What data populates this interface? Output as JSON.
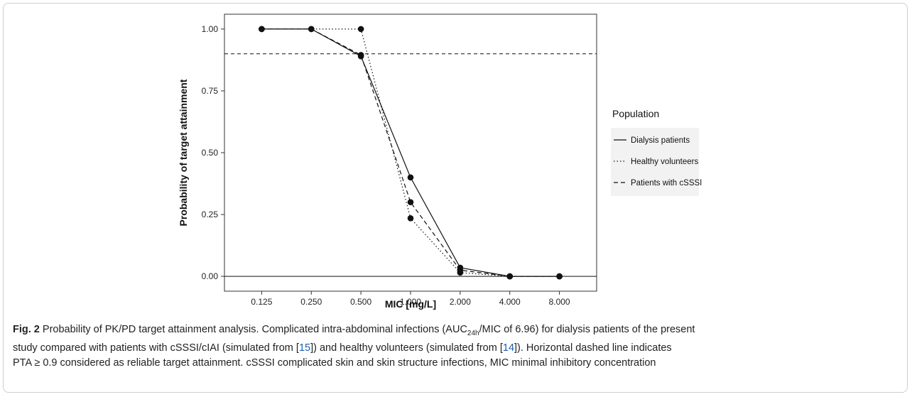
{
  "chart_data": {
    "type": "line",
    "xlabel": "MIC [mg/L]",
    "ylabel": "Probability of target attainment",
    "categories": [
      "0.125",
      "0.250",
      "0.500",
      "1.000",
      "2.000",
      "4.000",
      "8.000"
    ],
    "x": [
      0.125,
      0.25,
      0.5,
      1.0,
      2.0,
      4.0,
      8.0
    ],
    "x_scale": "log2",
    "yticks": [
      "0.00",
      "0.25",
      "0.50",
      "0.75",
      "1.00"
    ],
    "ylim": [
      -0.06,
      1.06
    ],
    "threshold": 0.9,
    "grid": false,
    "legend": {
      "title": "Population",
      "placement": "right"
    },
    "series": [
      {
        "name": "Dialysis patients",
        "linestyle": "solid",
        "values": [
          1.0,
          1.0,
          0.89,
          0.4,
          0.035,
          0.0,
          0.0
        ]
      },
      {
        "name": "Healthy volunteers",
        "linestyle": "dotted",
        "values": [
          1.0,
          1.0,
          1.0,
          0.235,
          0.015,
          0.0,
          0.0
        ]
      },
      {
        "name": "Patients with cSSSI",
        "linestyle": "dashed",
        "values": [
          1.0,
          1.0,
          0.895,
          0.3,
          0.025,
          0.0,
          0.0
        ]
      }
    ]
  },
  "caption": {
    "label": "Fig. 2",
    "title": "Probability of PK/PD target attainment analysis.",
    "seg1": "Complicated intra-abdominal infections (AUC",
    "sub": "24h",
    "seg2": "/MIC of 6.96) for dialysis patients of the present",
    "seg3": "study compared with patients with cSSSI/cIAI (simulated from [",
    "ref1": "15",
    "seg4": "]) and healthy volunteers (simulated from [",
    "ref2": "14",
    "seg5": "]). Horizontal dashed line indicates",
    "seg6": "PTA ≥ 0.9 considered as reliable target attainment. cSSSI complicated skin and skin structure infections, MIC minimal inhibitory concentration"
  }
}
